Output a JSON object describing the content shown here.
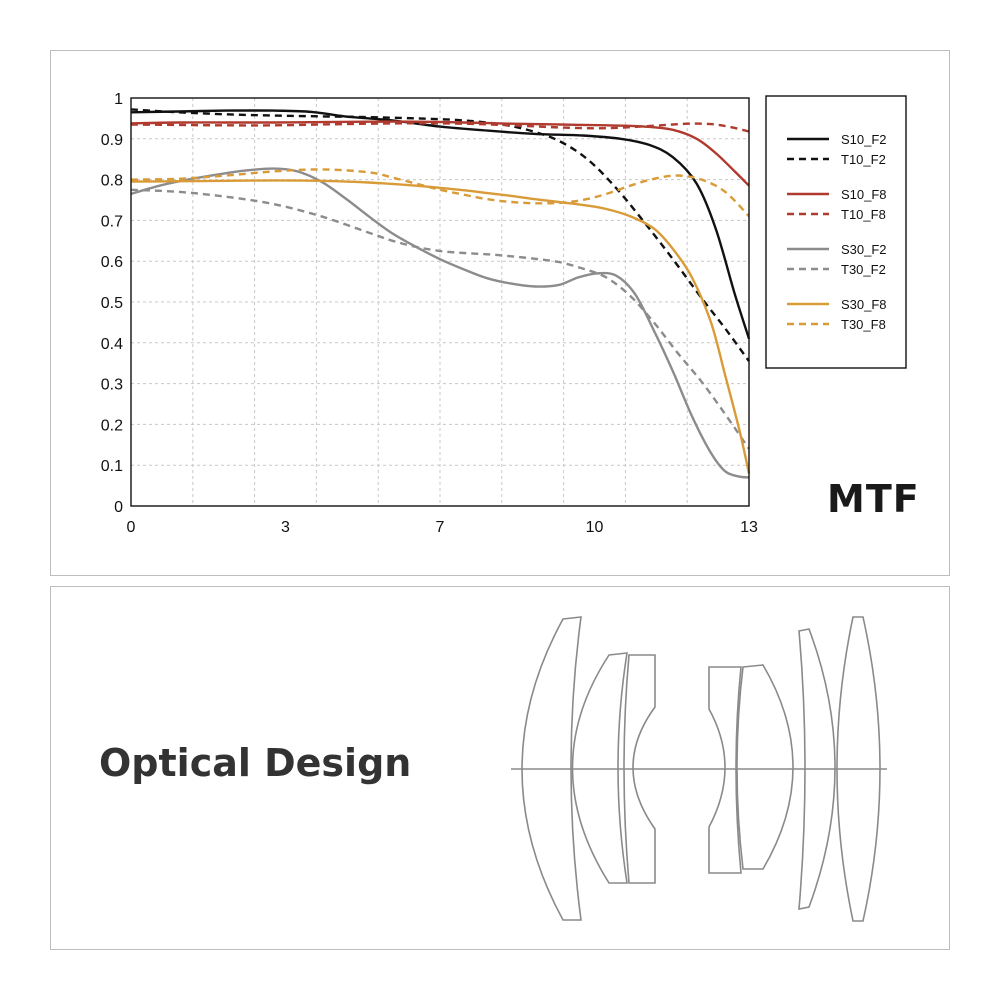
{
  "chart_data": {
    "type": "line",
    "title": "MTF",
    "xlabel": "",
    "ylabel": "",
    "xlim": [
      0,
      13
    ],
    "ylim": [
      0,
      1
    ],
    "x_ticks": [
      "0",
      "3",
      "7",
      "10",
      "13"
    ],
    "x_tick_values": [
      0,
      3.25,
      6.5,
      9.75,
      13
    ],
    "y_ticks": [
      "0",
      "0.1",
      "0.2",
      "0.3",
      "0.4",
      "0.5",
      "0.6",
      "0.7",
      "0.8",
      "0.9",
      "1"
    ],
    "grid": true,
    "legend_position": "right",
    "series": [
      {
        "name": "S10_F2",
        "color": "#111111",
        "dashed": false,
        "points": [
          [
            0,
            0.965
          ],
          [
            1,
            0.967
          ],
          [
            2,
            0.969
          ],
          [
            3,
            0.969
          ],
          [
            3.8,
            0.966
          ],
          [
            4.5,
            0.955
          ],
          [
            5.5,
            0.945
          ],
          [
            6.5,
            0.93
          ],
          [
            7.5,
            0.92
          ],
          [
            8.5,
            0.912
          ],
          [
            9.5,
            0.908
          ],
          [
            10.3,
            0.9
          ],
          [
            10.9,
            0.885
          ],
          [
            11.4,
            0.855
          ],
          [
            11.9,
            0.79
          ],
          [
            12.3,
            0.68
          ],
          [
            12.7,
            0.52
          ],
          [
            13,
            0.41
          ]
        ]
      },
      {
        "name": "T10_F2",
        "color": "#111111",
        "dashed": true,
        "points": [
          [
            0,
            0.972
          ],
          [
            1,
            0.965
          ],
          [
            2,
            0.96
          ],
          [
            3,
            0.957
          ],
          [
            4,
            0.955
          ],
          [
            5,
            0.953
          ],
          [
            6,
            0.95
          ],
          [
            7,
            0.945
          ],
          [
            7.8,
            0.935
          ],
          [
            8.4,
            0.92
          ],
          [
            9,
            0.895
          ],
          [
            9.6,
            0.85
          ],
          [
            10.2,
            0.78
          ],
          [
            10.8,
            0.695
          ],
          [
            11.4,
            0.605
          ],
          [
            12,
            0.51
          ],
          [
            12.5,
            0.435
          ],
          [
            13,
            0.355
          ]
        ]
      },
      {
        "name": "S10_F8",
        "color": "#b03a2e",
        "dashed": false,
        "points": [
          [
            0,
            0.938
          ],
          [
            1,
            0.94
          ],
          [
            2,
            0.94
          ],
          [
            3,
            0.94
          ],
          [
            4,
            0.941
          ],
          [
            5,
            0.942
          ],
          [
            6,
            0.942
          ],
          [
            7,
            0.94
          ],
          [
            8,
            0.937
          ],
          [
            9,
            0.935
          ],
          [
            10,
            0.933
          ],
          [
            10.8,
            0.93
          ],
          [
            11.4,
            0.922
          ],
          [
            11.9,
            0.9
          ],
          [
            12.3,
            0.865
          ],
          [
            12.7,
            0.82
          ],
          [
            13,
            0.785
          ]
        ]
      },
      {
        "name": "T10_F8",
        "color": "#b03a2e",
        "dashed": true,
        "points": [
          [
            0,
            0.935
          ],
          [
            1,
            0.934
          ],
          [
            2,
            0.933
          ],
          [
            3,
            0.933
          ],
          [
            4,
            0.935
          ],
          [
            5,
            0.937
          ],
          [
            6,
            0.938
          ],
          [
            7,
            0.937
          ],
          [
            8,
            0.933
          ],
          [
            9,
            0.928
          ],
          [
            10,
            0.926
          ],
          [
            11,
            0.932
          ],
          [
            11.7,
            0.937
          ],
          [
            12.2,
            0.936
          ],
          [
            12.6,
            0.929
          ],
          [
            13,
            0.918
          ]
        ]
      },
      {
        "name": "S30_F2",
        "color": "#8c8c8c",
        "dashed": false,
        "points": [
          [
            0,
            0.765
          ],
          [
            0.6,
            0.785
          ],
          [
            1.2,
            0.8
          ],
          [
            1.8,
            0.812
          ],
          [
            2.4,
            0.822
          ],
          [
            3,
            0.827
          ],
          [
            3.5,
            0.82
          ],
          [
            4,
            0.795
          ],
          [
            4.5,
            0.755
          ],
          [
            5,
            0.71
          ],
          [
            5.5,
            0.668
          ],
          [
            6,
            0.635
          ],
          [
            6.5,
            0.605
          ],
          [
            7,
            0.58
          ],
          [
            7.5,
            0.558
          ],
          [
            8,
            0.545
          ],
          [
            8.5,
            0.538
          ],
          [
            9,
            0.542
          ],
          [
            9.4,
            0.56
          ],
          [
            9.8,
            0.57
          ],
          [
            10.2,
            0.565
          ],
          [
            10.6,
            0.52
          ],
          [
            11,
            0.43
          ],
          [
            11.4,
            0.33
          ],
          [
            11.8,
            0.22
          ],
          [
            12.2,
            0.13
          ],
          [
            12.5,
            0.085
          ],
          [
            12.8,
            0.072
          ],
          [
            13,
            0.07
          ]
        ]
      },
      {
        "name": "T30_F2",
        "color": "#8c8c8c",
        "dashed": true,
        "points": [
          [
            0,
            0.775
          ],
          [
            1,
            0.77
          ],
          [
            2,
            0.758
          ],
          [
            3,
            0.74
          ],
          [
            4,
            0.71
          ],
          [
            5,
            0.67
          ],
          [
            5.5,
            0.65
          ],
          [
            6,
            0.635
          ],
          [
            6.5,
            0.625
          ],
          [
            7,
            0.62
          ],
          [
            7.5,
            0.617
          ],
          [
            8,
            0.612
          ],
          [
            8.5,
            0.606
          ],
          [
            9,
            0.598
          ],
          [
            9.5,
            0.582
          ],
          [
            10,
            0.56
          ],
          [
            10.5,
            0.515
          ],
          [
            11,
            0.45
          ],
          [
            11.5,
            0.375
          ],
          [
            12,
            0.305
          ],
          [
            12.5,
            0.225
          ],
          [
            13,
            0.14
          ]
        ]
      },
      {
        "name": "S30_F8",
        "color": "#d99b37",
        "dashed": false,
        "points": [
          [
            0,
            0.795
          ],
          [
            1,
            0.796
          ],
          [
            2,
            0.797
          ],
          [
            3,
            0.798
          ],
          [
            4,
            0.797
          ],
          [
            5,
            0.793
          ],
          [
            6,
            0.785
          ],
          [
            7,
            0.774
          ],
          [
            7.5,
            0.767
          ],
          [
            8,
            0.76
          ],
          [
            8.5,
            0.752
          ],
          [
            9,
            0.745
          ],
          [
            9.5,
            0.738
          ],
          [
            10,
            0.728
          ],
          [
            10.5,
            0.71
          ],
          [
            11,
            0.68
          ],
          [
            11.4,
            0.63
          ],
          [
            11.8,
            0.56
          ],
          [
            12.2,
            0.45
          ],
          [
            12.5,
            0.32
          ],
          [
            12.8,
            0.185
          ],
          [
            13,
            0.08
          ]
        ]
      },
      {
        "name": "T30_F8",
        "color": "#d99b37",
        "dashed": true,
        "points": [
          [
            0,
            0.8
          ],
          [
            1,
            0.802
          ],
          [
            2,
            0.81
          ],
          [
            3,
            0.82
          ],
          [
            4,
            0.825
          ],
          [
            5,
            0.818
          ],
          [
            5.5,
            0.805
          ],
          [
            6,
            0.79
          ],
          [
            6.5,
            0.775
          ],
          [
            7,
            0.763
          ],
          [
            7.5,
            0.752
          ],
          [
            8,
            0.745
          ],
          [
            8.5,
            0.742
          ],
          [
            9,
            0.743
          ],
          [
            9.5,
            0.75
          ],
          [
            10,
            0.765
          ],
          [
            10.5,
            0.785
          ],
          [
            11,
            0.802
          ],
          [
            11.5,
            0.81
          ],
          [
            12,
            0.8
          ],
          [
            12.5,
            0.77
          ],
          [
            13,
            0.71
          ]
        ]
      }
    ]
  },
  "optics": {
    "title": "Optical Design"
  }
}
